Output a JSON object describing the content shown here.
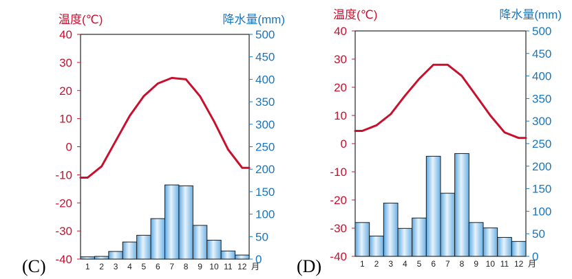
{
  "chart_data": [
    {
      "panel_label": "(C)",
      "type": "bar+line",
      "temp_label": "温度(℃)",
      "precip_label": "降水量(mm)",
      "month_suffix": "月",
      "ylim_temp": [
        -40,
        40
      ],
      "ylim_precip": [
        0,
        500
      ],
      "temp_ticks": [
        "40",
        "30",
        "20",
        "10",
        "0",
        "-10",
        "-20",
        "-30",
        "-40"
      ],
      "precip_ticks": [
        "500",
        "450",
        "400",
        "350",
        "300",
        "250",
        "200",
        "150",
        "100",
        "50",
        "0"
      ],
      "categories": [
        "1",
        "2",
        "3",
        "4",
        "5",
        "6",
        "7",
        "8",
        "9",
        "10",
        "11",
        "12"
      ],
      "temperature": [
        -11,
        -7,
        2,
        11,
        18,
        22.5,
        24.5,
        24,
        18,
        9,
        -1,
        -7.5
      ],
      "precipitation": [
        5,
        6,
        17,
        38,
        53,
        90,
        165,
        163,
        75,
        42,
        18,
        9
      ],
      "colors": {
        "temp": "#c8102e",
        "precip": "#1a75bb",
        "bar": "#8cc4ec"
      }
    },
    {
      "panel_label": "(D)",
      "type": "bar+line",
      "temp_label": "温度(℃)",
      "precip_label": "降水量(mm)",
      "month_suffix": "月",
      "ylim_temp": [
        -40,
        40
      ],
      "ylim_precip": [
        0,
        500
      ],
      "temp_ticks": [
        "40",
        "30",
        "20",
        "10",
        "0",
        "-10",
        "-20",
        "-30",
        "-40"
      ],
      "precip_ticks": [
        "500",
        "450",
        "400",
        "350",
        "300",
        "250",
        "200",
        "150",
        "100",
        "50",
        "0"
      ],
      "categories": [
        "1",
        "2",
        "3",
        "4",
        "5",
        "6",
        "7",
        "8",
        "9",
        "10",
        "11",
        "12"
      ],
      "temperature": [
        4.5,
        6.5,
        10.5,
        17,
        23,
        28,
        28,
        24,
        17,
        10,
        4,
        2
      ],
      "precipitation": [
        75,
        45,
        118,
        62,
        85,
        222,
        140,
        228,
        75,
        63,
        42,
        33
      ],
      "colors": {
        "temp": "#c8102e",
        "precip": "#1a75bb",
        "bar": "#8cc4ec"
      }
    }
  ]
}
